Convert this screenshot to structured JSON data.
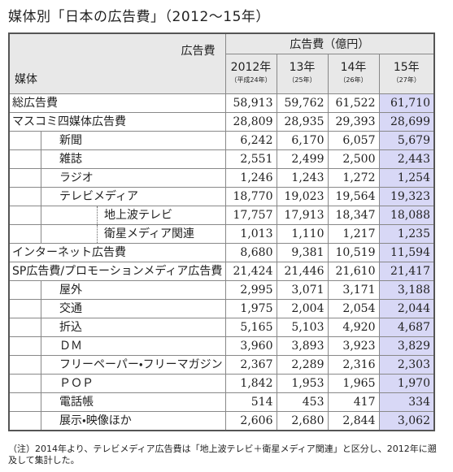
{
  "title": "媒体別「日本の広告費」（2012～15年）",
  "table": {
    "corner_top": "広告費",
    "corner_bottom": "媒体",
    "group_header": "広告費（億円）",
    "columns": [
      {
        "year": "2012年",
        "era": "（平成24年）"
      },
      {
        "year": "13年",
        "era": "（25年）"
      },
      {
        "year": "14年",
        "era": "（26年）"
      },
      {
        "year": "15年",
        "era": "（27年）"
      }
    ],
    "rows": [
      {
        "label": "総広告費",
        "level": 0,
        "values": [
          "58,913",
          "59,762",
          "61,522",
          "61,710"
        ]
      },
      {
        "label": "マスコミ四媒体広告費",
        "level": 0,
        "values": [
          "28,809",
          "28,935",
          "29,393",
          "28,699"
        ]
      },
      {
        "label": "新聞",
        "level": 1,
        "values": [
          "6,242",
          "6,170",
          "6,057",
          "5,679"
        ]
      },
      {
        "label": "雑誌",
        "level": 1,
        "values": [
          "2,551",
          "2,499",
          "2,500",
          "2,443"
        ]
      },
      {
        "label": "ラジオ",
        "level": 1,
        "values": [
          "1,246",
          "1,243",
          "1,272",
          "1,254"
        ]
      },
      {
        "label": "テレビメディア",
        "level": 1,
        "values": [
          "18,770",
          "19,023",
          "19,564",
          "19,323"
        ]
      },
      {
        "label": "地上波テレビ",
        "level": 2,
        "values": [
          "17,757",
          "17,913",
          "18,347",
          "18,088"
        ]
      },
      {
        "label": "衛星メディア関連",
        "level": 2,
        "values": [
          "1,013",
          "1,110",
          "1,217",
          "1,235"
        ]
      },
      {
        "label": "インターネット広告費",
        "level": 0,
        "values": [
          "8,680",
          "9,381",
          "10,519",
          "11,594"
        ]
      },
      {
        "label": "SP広告費/プロモーションメディア広告費",
        "level": 0,
        "values": [
          "21,424",
          "21,446",
          "21,610",
          "21,417"
        ]
      },
      {
        "label": "屋外",
        "level": 1,
        "values": [
          "2,995",
          "3,071",
          "3,171",
          "3,188"
        ]
      },
      {
        "label": "交通",
        "level": 1,
        "values": [
          "1,975",
          "2,004",
          "2,054",
          "2,044"
        ]
      },
      {
        "label": "折込",
        "level": 1,
        "values": [
          "5,165",
          "5,103",
          "4,920",
          "4,687"
        ]
      },
      {
        "label": "ＤＭ",
        "level": 1,
        "values": [
          "3,960",
          "3,893",
          "3,923",
          "3,829"
        ]
      },
      {
        "label": "フリーペーパー・フリーマガジン",
        "level": 1,
        "values": [
          "2,367",
          "2,289",
          "2,316",
          "2,303"
        ]
      },
      {
        "label": "ＰＯＰ",
        "level": 1,
        "values": [
          "1,842",
          "1,953",
          "1,965",
          "1,970"
        ]
      },
      {
        "label": "電話帳",
        "level": 1,
        "values": [
          "514",
          "453",
          "417",
          "334"
        ]
      },
      {
        "label": "展示・映像ほか",
        "level": 1,
        "values": [
          "2,606",
          "2,680",
          "2,844",
          "3,062"
        ]
      }
    ]
  },
  "note": "（注）2014年より、テレビメディア広告費は「地上波テレビ＋衛星メディア関連」と区分し、2012年に遡及して集計した。"
}
